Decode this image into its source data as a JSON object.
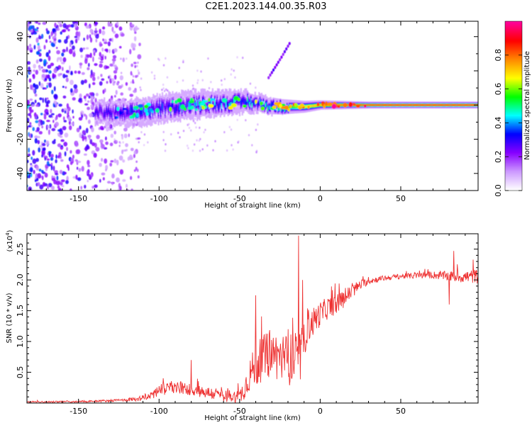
{
  "title": "C2E1.2023.144.00.35.R03",
  "colors": {
    "snr_line": "#ee3333",
    "frame": "#000000"
  },
  "chart_data": [
    {
      "type": "heatmap",
      "xlabel": "Height of straight line (km)",
      "ylabel": "Frequency (Hz)",
      "xlim": [
        -182,
        98
      ],
      "ylim": [
        -50,
        49
      ],
      "x_ticks": [
        -150,
        -100,
        -50,
        0,
        50
      ],
      "x_tick_labels": [
        "-150",
        "-100",
        "-50",
        "0",
        "50"
      ],
      "y_ticks": [
        -40,
        -20,
        0,
        20,
        40
      ],
      "y_tick_labels": [
        "-40",
        "-20",
        "0",
        "20",
        "40"
      ],
      "colorbar": {
        "label": "Normalized spectral amplitude",
        "range": [
          0,
          1
        ],
        "ticks": [
          0,
          0.2,
          0.4,
          0.6,
          0.8
        ],
        "tick_labels": [
          "0.0",
          "0.2",
          "0.4",
          "0.6",
          "0.8"
        ],
        "colormap": [
          "#ffffff",
          "#cc99ff",
          "#8800ff",
          "#0000ff",
          "#00ffff",
          "#00ff00",
          "#ffff00",
          "#ff8800",
          "#ff0000",
          "#ff0099"
        ]
      },
      "grid": false,
      "features": {
        "noise_region_x": [
          -182,
          -120
        ],
        "signal_band_center_hz": 0,
        "band_start_x": -140,
        "band_center_hz_profile": {
          "x": [
            -140,
            -120,
            -100,
            -80,
            -60,
            -45,
            -35,
            -25,
            -10,
            0,
            20,
            50,
            98
          ],
          "y": [
            -4,
            -5,
            -2,
            0,
            1,
            2,
            0,
            -1,
            -1,
            0,
            0,
            0,
            0
          ]
        },
        "band_halfwidth_hz_profile": {
          "x": [
            -140,
            -110,
            -80,
            -50,
            -40,
            -20,
            0,
            30,
            98
          ],
          "y": [
            5,
            6,
            6,
            5,
            4,
            3,
            2,
            1.5,
            1.5
          ]
        },
        "band_peak_amplitude_profile": {
          "x": [
            -140,
            -110,
            -80,
            -50,
            -30,
            -20,
            -5,
            5,
            20,
            40,
            98
          ],
          "y": [
            0.3,
            0.35,
            0.4,
            0.45,
            0.5,
            0.55,
            0.7,
            0.75,
            0.8,
            0.85,
            0.85
          ]
        },
        "doppler_trace": {
          "x": [
            -32,
            -24,
            -19
          ],
          "y": [
            16,
            28,
            36
          ]
        }
      }
    },
    {
      "type": "line",
      "xlabel": "Height of straight line (km)",
      "ylabel": "SNR (10 * v/v)",
      "y_multiplier": "(x10",
      "y_multiplier_exp": "4",
      "y_multiplier_close": ")",
      "xlim": [
        -182,
        98
      ],
      "ylim": [
        0,
        2.75
      ],
      "x_ticks": [
        -150,
        -100,
        -50,
        0,
        50
      ],
      "x_tick_labels": [
        "-150",
        "-100",
        "-50",
        "0",
        "50"
      ],
      "y_ticks": [
        0.5,
        1.0,
        1.5,
        2.0,
        2.5
      ],
      "y_tick_labels": [
        "0.5",
        "1.0",
        "1.5",
        "2.0",
        "2.5"
      ],
      "grid": false,
      "series": [
        {
          "envelope_mean": {
            "x": [
              -182,
              -160,
              -140,
              -120,
              -110,
              -105,
              -100,
              -90,
              -80,
              -70,
              -60,
              -55,
              -50,
              -47,
              -43,
              -40,
              -35,
              -30,
              -25,
              -20,
              -16,
              -12,
              -10,
              -8,
              -5,
              0,
              5,
              10,
              15,
              20,
              25,
              30,
              40,
              50,
              60,
              70,
              80,
              90,
              98
            ],
            "y": [
              0.02,
              0.02,
              0.03,
              0.05,
              0.08,
              0.13,
              0.2,
              0.25,
              0.22,
              0.17,
              0.12,
              0.1,
              0.1,
              0.25,
              0.5,
              0.6,
              0.75,
              0.8,
              0.75,
              0.7,
              0.72,
              0.75,
              1.0,
              1.25,
              1.3,
              1.45,
              1.55,
              1.6,
              1.7,
              1.82,
              1.92,
              1.98,
              2.03,
              2.06,
              2.07,
              2.08,
              2.06,
              2.05,
              2.06
            ]
          },
          "envelope_noise": {
            "x": [
              -182,
              -120,
              -110,
              -100,
              -60,
              -50,
              -40,
              -12,
              -10,
              0,
              20,
              30,
              50,
              70,
              98
            ],
            "y": [
              0.01,
              0.02,
              0.05,
              0.1,
              0.1,
              0.12,
              0.35,
              0.45,
              0.3,
              0.2,
              0.12,
              0.05,
              0.04,
              0.06,
              0.12
            ]
          },
          "spikes": [
            {
              "x": -13.5,
              "y": 2.72
            },
            {
              "x": -40,
              "y": 1.75
            },
            {
              "x": -80,
              "y": 0.7
            },
            {
              "x": -11,
              "y": 2.0
            },
            {
              "x": 83,
              "y": 2.47
            },
            {
              "x": 95,
              "y": 2.33
            },
            {
              "x": 80,
              "y": 1.6
            }
          ]
        }
      ]
    }
  ]
}
